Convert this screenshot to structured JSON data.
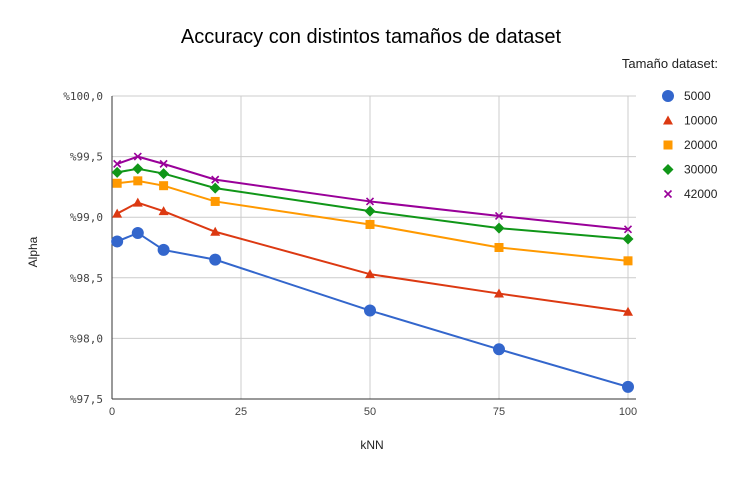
{
  "chart_data": {
    "type": "line",
    "title": "Accuracy con distintos tamaños de dataset",
    "xlabel": "kNN",
    "ylabel": "Alpha",
    "x": [
      1,
      5,
      10,
      20,
      50,
      75,
      100
    ],
    "xlim": [
      0,
      100
    ],
    "ylim": [
      97.5,
      100.0
    ],
    "x_ticks": [
      0,
      25,
      50,
      75,
      100
    ],
    "y_ticks": [
      97.5,
      98.0,
      98.5,
      99.0,
      99.5,
      100.0
    ],
    "x_tick_labels": [
      "0",
      "25",
      "50",
      "75",
      "100"
    ],
    "y_tick_labels": [
      "%97,5",
      "%98,0",
      "%98,5",
      "%99,0",
      "%99,5",
      "%100,0"
    ],
    "grid": true,
    "legend": {
      "title": "Tamaño dataset:",
      "placement": "right"
    },
    "series": [
      {
        "name": "5000",
        "color": "#3366cc",
        "marker": "circle",
        "values": [
          98.8,
          98.87,
          98.73,
          98.65,
          98.23,
          97.91,
          97.6
        ]
      },
      {
        "name": "10000",
        "color": "#dc3912",
        "marker": "triangle",
        "values": [
          99.03,
          99.12,
          99.05,
          98.88,
          98.53,
          98.37,
          98.22
        ]
      },
      {
        "name": "20000",
        "color": "#ff9900",
        "marker": "square",
        "values": [
          99.28,
          99.3,
          99.26,
          99.13,
          98.94,
          98.75,
          98.64
        ]
      },
      {
        "name": "30000",
        "color": "#109618",
        "marker": "diamond",
        "values": [
          99.37,
          99.4,
          99.36,
          99.24,
          99.05,
          98.91,
          98.82
        ]
      },
      {
        "name": "42000",
        "color": "#990099",
        "marker": "cross",
        "values": [
          99.44,
          99.5,
          99.44,
          99.31,
          99.13,
          99.01,
          98.9
        ]
      }
    ]
  }
}
